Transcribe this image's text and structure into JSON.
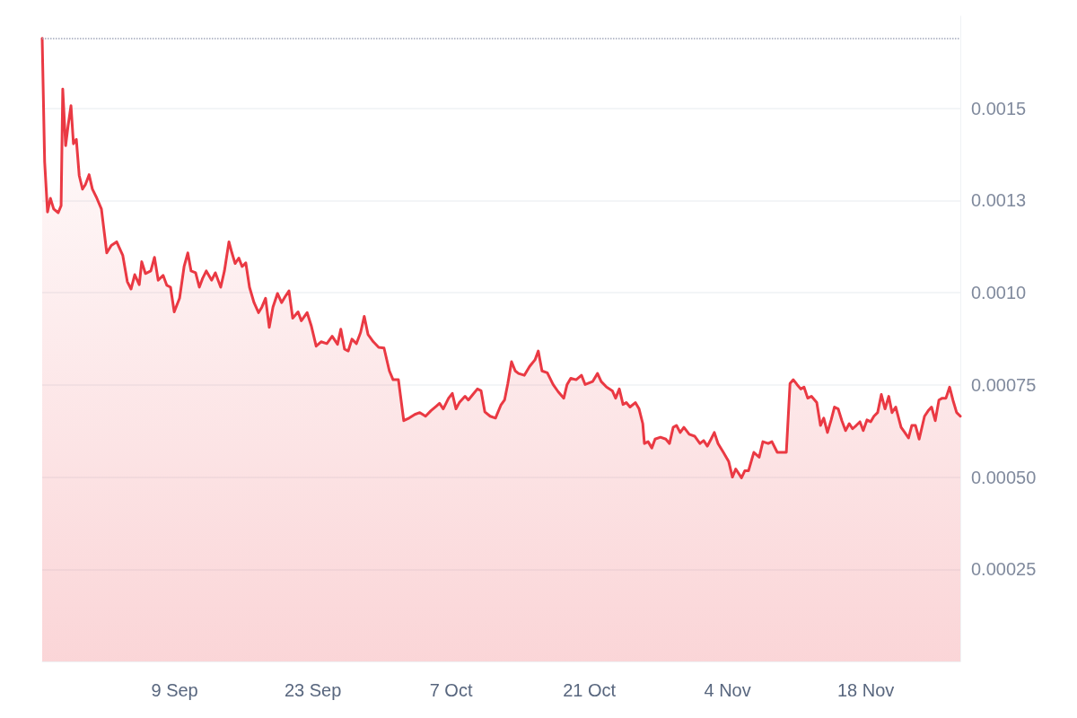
{
  "chart_data": {
    "type": "area",
    "color": "#ea3943",
    "grid": "y",
    "marker": "none",
    "line_style": "solid",
    "xlim": [
      "--08-26T14:00",
      "--11-27T14:00"
    ],
    "xticks": [
      {
        "value": "--09-09",
        "label": "9 Sep"
      },
      {
        "value": "--09-23",
        "label": "23 Sep"
      },
      {
        "value": "--10-07",
        "label": "7 Oct"
      },
      {
        "value": "--10-21",
        "label": "21 Oct"
      },
      {
        "value": "--11-04",
        "label": "4 Nov"
      },
      {
        "value": "--11-18",
        "label": "18 Nov"
      }
    ],
    "ylim": [
      0,
      0.00175
    ],
    "yticks": [
      0.00025,
      {
        "value": 0.0005,
        "label": "0.00050"
      },
      0.00075,
      {
        "value": 0.001,
        "label": "0.0010"
      },
      {
        "value": 0.00125,
        "label": "0.0013"
      },
      0.0015
    ],
    "ref_lines": [
      {
        "axis": "y",
        "value": 0.00169,
        "label": null,
        "color": "#a1a7bb",
        "line_style": "dotted"
      }
    ],
    "x": [
      "--08-26T14:00",
      "--08-26T20:00",
      "--08-27T03:00",
      "--08-27T10:00",
      "--08-27T18:00",
      "--08-28T05:00",
      "--08-28T12:00",
      "--08-28T16:00",
      "--08-28T23:00",
      "--08-29T05:00",
      "--08-29T12:00",
      "--08-29T18:00",
      "--08-30T01:00",
      "--08-30T08:00",
      "--08-30T16:00",
      "--08-30T23:00",
      "--08-31T08:00",
      "--08-31T16:00",
      "--09-01T03:00",
      "--09-01T14:00",
      "--09-02T03:00",
      "--09-02T14:00",
      "--09-03T03:00",
      "--09-03T18:00",
      "--09-04T05:00",
      "--09-04T14:00",
      "--09-04T23:00",
      "--09-05T10:00",
      "--09-05T16:00",
      "--09-06T01:00",
      "--09-06T14:00",
      "--09-06T23:00",
      "--09-07T08:00",
      "--09-07T20:00",
      "--09-08T05:00",
      "--09-08T14:00",
      "--09-08T23:00",
      "--09-09T12:00",
      "--09-09T23:00",
      "--09-10T08:00",
      "--09-10T16:00",
      "--09-11T03:00",
      "--09-11T12:00",
      "--09-11T20:00",
      "--09-12T05:00",
      "--09-12T18:00",
      "--09-13T03:00",
      "--09-13T16:00",
      "--09-14T01:00",
      "--09-14T12:00",
      "--09-14T18:00",
      "--09-15T03:00",
      "--09-15T12:00",
      "--09-15T20:00",
      "--09-16T05:00",
      "--09-16T14:00",
      "--09-17T01:00",
      "--09-17T12:00",
      "--09-17T20:00",
      "--09-18T05:00",
      "--09-18T14:00",
      "--09-18T23:00",
      "--09-19T10:00",
      "--09-19T20:00",
      "--09-20T05:00",
      "--09-20T14:00",
      "--09-20T23:00",
      "--09-21T12:00",
      "--09-21T20:00",
      "--09-22T10:00",
      "--09-22T20:00",
      "--09-23T08:00",
      "--09-23T20:00",
      "--09-24T10:00",
      "--09-24T23:00",
      "--09-25T12:00",
      "--09-25T20:00",
      "--09-26T05:00",
      "--09-26T14:00",
      "--09-26T23:00",
      "--09-27T10:00",
      "--09-27T20:00",
      "--09-28T05:00",
      "--09-28T14:00",
      "--09-29T03:00",
      "--09-29T16:00",
      "--09-30T05:00",
      "--09-30T18:00",
      "--10-01T03:00",
      "--10-01T16:00",
      "--10-02T05:00",
      "--10-02T18:00",
      "--10-03T08:00",
      "--10-03T20:00",
      "--10-04T10:00",
      "--10-04T23:00",
      "--10-05T12:00",
      "--10-05T20:00",
      "--10-06T05:00",
      "--10-06T18:00",
      "--10-07T03:00",
      "--10-07T12:00",
      "--10-07T20:00",
      "--10-08T10:00",
      "--10-08T18:00",
      "--10-09T05:00",
      "--10-09T16:00",
      "--10-10T01:00",
      "--10-10T10:00",
      "--10-10T23:00",
      "--10-11T12:00",
      "--10-12T01:00",
      "--10-12T10:00",
      "--10-12T18:00",
      "--10-13T03:00",
      "--10-13T12:00",
      "--10-13T20:00",
      "--10-14T10:00",
      "--10-14T23:00",
      "--10-15T12:00",
      "--10-15T20:00",
      "--10-16T05:00",
      "--10-16T18:00",
      "--10-17T08:00",
      "--10-17T20:00",
      "--10-18T10:00",
      "--10-18T18:00",
      "--10-19T03:00",
      "--10-19T16:00",
      "--10-20T05:00",
      "--10-20T14:00",
      "--10-21T08:00",
      "--10-21T20:00",
      "--10-22T05:00",
      "--10-22T18:00",
      "--10-23T08:00",
      "--10-23T16:00",
      "--10-24T01:00",
      "--10-24T10:00",
      "--10-24T18:00",
      "--10-25T03:00",
      "--10-25T16:00",
      "--10-26T01:00",
      "--10-26T10:00",
      "--10-26T14:00",
      "--10-26T23:00",
      "--10-27T08:00",
      "--10-27T16:00",
      "--10-28T05:00",
      "--10-28T18:00",
      "--10-29T03:00",
      "--10-29T12:00",
      "--10-29T20:00",
      "--10-30T05:00",
      "--10-30T14:00",
      "--10-31T03:00",
      "--10-31T16:00",
      "--11-01T05:00",
      "--11-01T14:00",
      "--11-01T23:00",
      "--11-02T08:00",
      "--11-02T16:00",
      "--11-03T01:00",
      "--11-03T14:00",
      "--11-04T03:00",
      "--11-04T12:00",
      "--11-04T20:00",
      "--11-05T10:00",
      "--11-05T18:00",
      "--11-06T03:00",
      "--11-06T16:00",
      "--11-07T05:00",
      "--11-07T14:00",
      "--11-08T03:00",
      "--11-08T12:00",
      "--11-09T01:00",
      "--11-09T14:00",
      "--11-09T23:00",
      "--11-10T08:00",
      "--11-10T16:00",
      "--11-11T01:00",
      "--11-11T10:00",
      "--11-11T18:00",
      "--11-12T03:00",
      "--11-12T12:00",
      "--11-13T01:00",
      "--11-13T10:00",
      "--11-13T18:00",
      "--11-14T03:00",
      "--11-14T12:00",
      "--11-14T20:00",
      "--11-15T05:00",
      "--11-15T14:00",
      "--11-15T23:00",
      "--11-16T08:00",
      "--11-16T16:00",
      "--11-17T01:00",
      "--11-17T10:00",
      "--11-17T18:00",
      "--11-18T03:00",
      "--11-18T12:00",
      "--11-18T20:00",
      "--11-19T05:00",
      "--11-19T14:00",
      "--11-19T23:00",
      "--11-20T08:00",
      "--11-20T16:00",
      "--11-21T01:00",
      "--11-21T14:00",
      "--11-21T23:00",
      "--11-22T08:00",
      "--11-22T16:00",
      "--11-23T01:00",
      "--11-23T10:00",
      "--11-23T23:00",
      "--11-24T08:00",
      "--11-24T16:00",
      "--11-25T01:00",
      "--11-25T10:00",
      "--11-25T18:00",
      "--11-26T03:00",
      "--11-26T12:00",
      "--11-26T20:00",
      "--11-27T05:00",
      "--11-27T14:00"
    ],
    "values": [
      0.00169,
      0.001355,
      0.001219,
      0.001256,
      0.001227,
      0.001217,
      0.001236,
      0.001552,
      0.001399,
      0.001453,
      0.001507,
      0.001404,
      0.001416,
      0.001318,
      0.001281,
      0.001293,
      0.00132,
      0.001281,
      0.001256,
      0.001227,
      0.001108,
      0.001128,
      0.001138,
      0.001101,
      0.00103,
      0.00101,
      0.001049,
      0.001022,
      0.001084,
      0.001052,
      0.001059,
      0.001096,
      0.001034,
      0.001047,
      0.00102,
      0.001015,
      0.000948,
      0.000985,
      0.001071,
      0.001108,
      0.001059,
      0.001054,
      0.001015,
      0.001039,
      0.001059,
      0.001034,
      0.001054,
      0.001015,
      0.001059,
      0.001138,
      0.001113,
      0.001079,
      0.001094,
      0.001071,
      0.001081,
      0.001015,
      0.000973,
      0.000946,
      0.000961,
      0.000985,
      0.000906,
      0.000961,
      0.000998,
      0.000973,
      0.00099,
      0.001005,
      0.000931,
      0.000948,
      0.000924,
      0.000946,
      0.000911,
      0.000855,
      0.000867,
      0.000862,
      0.000882,
      0.00086,
      0.000901,
      0.000847,
      0.000842,
      0.000874,
      0.000862,
      0.000892,
      0.000936,
      0.000887,
      0.000867,
      0.000852,
      0.00085,
      0.000788,
      0.000764,
      0.000764,
      0.000653,
      0.00066,
      0.00067,
      0.000675,
      0.000665,
      0.00068,
      0.000692,
      0.0007,
      0.000685,
      0.000714,
      0.000727,
      0.000685,
      0.000702,
      0.000719,
      0.000709,
      0.000724,
      0.000739,
      0.000734,
      0.000677,
      0.000665,
      0.00066,
      0.000695,
      0.000709,
      0.000754,
      0.000813,
      0.000788,
      0.000781,
      0.000776,
      0.0008,
      0.000818,
      0.000842,
      0.000788,
      0.000783,
      0.000751,
      0.000732,
      0.000714,
      0.000751,
      0.000768,
      0.000764,
      0.000776,
      0.000751,
      0.000759,
      0.000781,
      0.000759,
      0.000744,
      0.000734,
      0.000714,
      0.000739,
      0.000697,
      0.000702,
      0.00069,
      0.000702,
      0.000685,
      0.000645,
      0.000591,
      0.000596,
      0.000579,
      0.000603,
      0.000608,
      0.000603,
      0.000591,
      0.000635,
      0.00064,
      0.000621,
      0.000635,
      0.000616,
      0.000611,
      0.000591,
      0.000599,
      0.000584,
      0.000603,
      0.000621,
      0.000591,
      0.000567,
      0.000542,
      0.0005,
      0.000522,
      0.000498,
      0.000517,
      0.000517,
      0.000567,
      0.000554,
      0.000596,
      0.000591,
      0.000596,
      0.000567,
      0.000567,
      0.000567,
      0.000754,
      0.000764,
      0.000751,
      0.000739,
      0.000744,
      0.000714,
      0.000719,
      0.000702,
      0.00064,
      0.00066,
      0.000621,
      0.000655,
      0.00069,
      0.000685,
      0.000653,
      0.000626,
      0.000645,
      0.000631,
      0.00064,
      0.00065,
      0.000626,
      0.000655,
      0.00065,
      0.000665,
      0.000675,
      0.000724,
      0.000685,
      0.000719,
      0.000675,
      0.00069,
      0.000635,
      0.000621,
      0.000606,
      0.00064,
      0.00064,
      0.000603,
      0.000665,
      0.00068,
      0.00069,
      0.000653,
      0.000709,
      0.000714,
      0.000714,
      0.000744,
      0.000709,
      0.000675,
      0.000665
    ]
  }
}
